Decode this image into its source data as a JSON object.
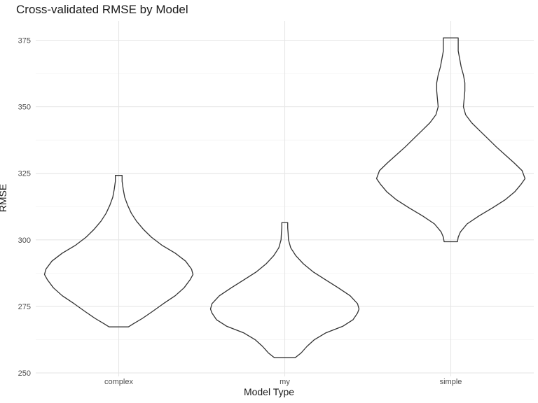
{
  "chart_data": {
    "type": "violin",
    "title": "Cross-validated RMSE by Model",
    "xlabel": "Model Type",
    "ylabel": "RMSE",
    "categories": [
      "complex",
      "my",
      "simple"
    ],
    "ylim": [
      250,
      382
    ],
    "yticks": [
      250,
      275,
      300,
      325,
      350,
      375
    ],
    "grid": true,
    "violins": [
      {
        "category": "complex",
        "min": 267.3,
        "max": 324.2,
        "profile": [
          [
            267.3,
            0.13
          ],
          [
            268.5,
            0.2
          ],
          [
            270.5,
            0.32
          ],
          [
            273,
            0.45
          ],
          [
            276,
            0.6
          ],
          [
            279,
            0.76
          ],
          [
            282,
            0.88
          ],
          [
            285,
            0.96
          ],
          [
            287,
            1.0
          ],
          [
            289,
            0.98
          ],
          [
            292,
            0.9
          ],
          [
            295,
            0.76
          ],
          [
            298,
            0.58
          ],
          [
            301,
            0.44
          ],
          [
            304,
            0.33
          ],
          [
            307,
            0.24
          ],
          [
            310,
            0.17
          ],
          [
            313,
            0.12
          ],
          [
            316,
            0.08
          ],
          [
            319,
            0.06
          ],
          [
            322,
            0.045
          ],
          [
            324.2,
            0.045
          ]
        ]
      },
      {
        "category": "my",
        "min": 255.7,
        "max": 306.5,
        "profile": [
          [
            255.7,
            0.14
          ],
          [
            257.5,
            0.22
          ],
          [
            260,
            0.3
          ],
          [
            262.5,
            0.4
          ],
          [
            265,
            0.55
          ],
          [
            267.5,
            0.78
          ],
          [
            270,
            0.92
          ],
          [
            272.5,
            0.98
          ],
          [
            274,
            1.0
          ],
          [
            276,
            0.98
          ],
          [
            279,
            0.88
          ],
          [
            282,
            0.72
          ],
          [
            285,
            0.55
          ],
          [
            288,
            0.38
          ],
          [
            291,
            0.25
          ],
          [
            294,
            0.15
          ],
          [
            297,
            0.08
          ],
          [
            300,
            0.05
          ],
          [
            302.5,
            0.045
          ],
          [
            304.5,
            0.04
          ],
          [
            306.5,
            0.04
          ]
        ]
      },
      {
        "category": "simple",
        "min": 299.3,
        "max": 375.9,
        "profile": [
          [
            299.3,
            0.09
          ],
          [
            301,
            0.1
          ],
          [
            303,
            0.13
          ],
          [
            306,
            0.22
          ],
          [
            309,
            0.38
          ],
          [
            312,
            0.56
          ],
          [
            315,
            0.73
          ],
          [
            318,
            0.86
          ],
          [
            321,
            0.95
          ],
          [
            323,
            1.0
          ],
          [
            326,
            0.96
          ],
          [
            329,
            0.85
          ],
          [
            332,
            0.73
          ],
          [
            335,
            0.61
          ],
          [
            338,
            0.5
          ],
          [
            341,
            0.39
          ],
          [
            344,
            0.28
          ],
          [
            347,
            0.2
          ],
          [
            350,
            0.17
          ],
          [
            353,
            0.18
          ],
          [
            356,
            0.19
          ],
          [
            359,
            0.19
          ],
          [
            362,
            0.17
          ],
          [
            365,
            0.14
          ],
          [
            368,
            0.12
          ],
          [
            371,
            0.1
          ],
          [
            373.5,
            0.1
          ],
          [
            375.9,
            0.1
          ]
        ]
      }
    ]
  }
}
